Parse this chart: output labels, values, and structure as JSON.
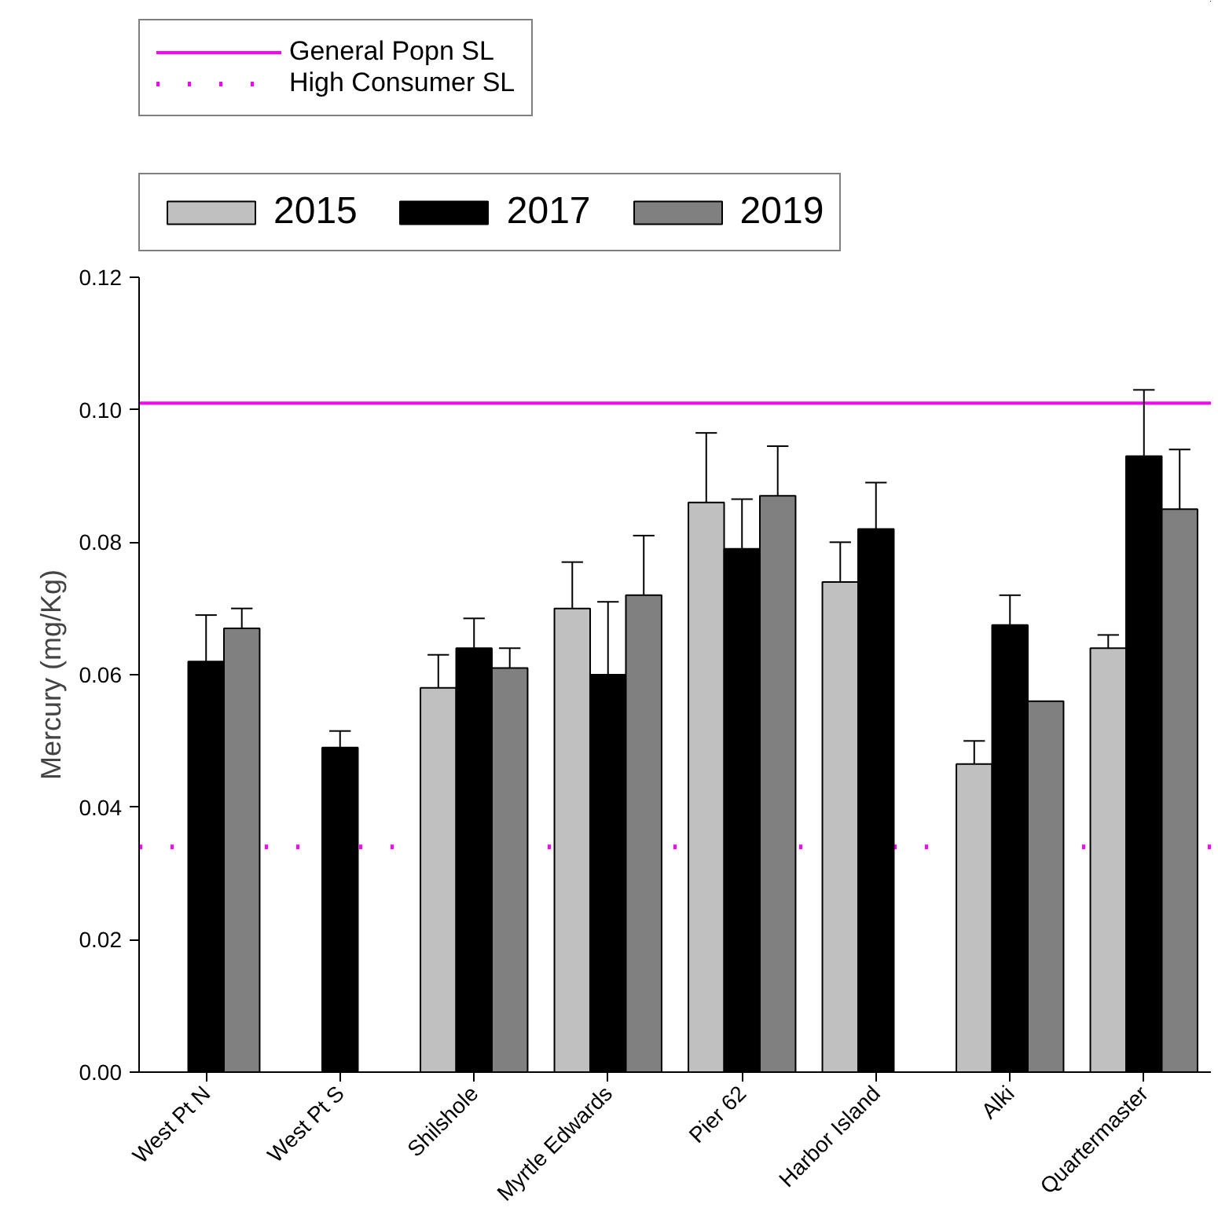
{
  "chart_data": {
    "type": "bar",
    "ylabel": "Mercury (mg/Kg)",
    "categories": [
      "West Pt N",
      "West Pt S",
      "Shilshole",
      "Myrtle Edwards",
      "Pier 62",
      "Harbor Island",
      "Alki",
      "Quartermaster"
    ],
    "series": [
      {
        "name": "2015",
        "color": "#c0c0c0",
        "values": [
          null,
          null,
          0.058,
          0.07,
          0.086,
          0.074,
          0.0465,
          0.064
        ],
        "errors": [
          null,
          null,
          [
            0.058,
            0.063
          ],
          [
            0.07,
            0.077
          ],
          [
            0.086,
            0.0965
          ],
          [
            0.074,
            0.08
          ],
          [
            0.0465,
            0.05
          ],
          [
            0.064,
            0.066
          ]
        ]
      },
      {
        "name": "2017",
        "color": "#000000",
        "values": [
          0.062,
          0.049,
          0.064,
          0.06,
          0.079,
          0.082,
          0.0675,
          0.093
        ],
        "errors": [
          [
            0.062,
            0.069
          ],
          [
            0.049,
            0.0515
          ],
          [
            0.064,
            0.0685
          ],
          [
            0.06,
            0.071
          ],
          [
            0.079,
            0.0865
          ],
          [
            0.082,
            0.089
          ],
          [
            0.0675,
            0.072
          ],
          [
            0.093,
            0.103
          ]
        ]
      },
      {
        "name": "2019",
        "color": "#808080",
        "values": [
          0.067,
          null,
          0.061,
          0.072,
          0.087,
          null,
          0.056,
          0.085
        ],
        "errors": [
          [
            0.067,
            0.07
          ],
          null,
          [
            0.061,
            0.064
          ],
          [
            0.072,
            0.081
          ],
          [
            0.087,
            0.0945
          ],
          null,
          null,
          [
            0.085,
            0.094
          ]
        ]
      }
    ],
    "ylim": [
      0,
      0.12
    ],
    "yticks": [
      {
        "value": 0,
        "label": "0.00"
      },
      {
        "value": 0.02,
        "label": "0.02"
      },
      {
        "value": 0.04,
        "label": "0.04"
      },
      {
        "value": 0.06,
        "label": "0.06"
      },
      {
        "value": 0.08,
        "label": "0.08"
      },
      {
        "value": 0.1,
        "label": "0.10"
      },
      {
        "value": 0.12,
        "label": "0.12"
      }
    ],
    "ref_lines": [
      {
        "axis": "y",
        "value": 0.101,
        "label": "General Popn SL",
        "color": "#ff00ff",
        "line_style": "solid"
      },
      {
        "axis": "y",
        "value": 0.034,
        "label": "High Consumer SL",
        "color": "#ff00ff",
        "line_style": "dotted"
      }
    ],
    "grid": false,
    "legend": "top"
  }
}
